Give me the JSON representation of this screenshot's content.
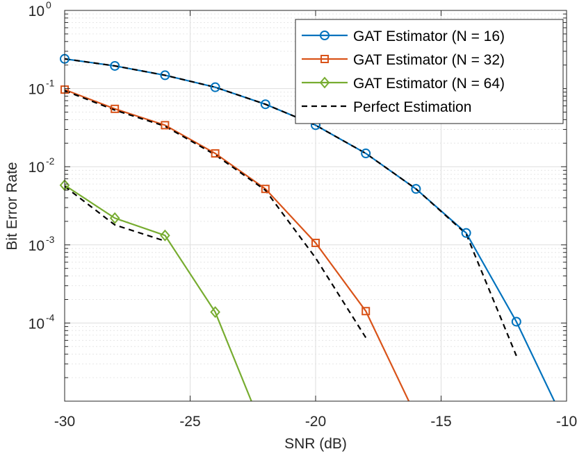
{
  "chart_data": {
    "type": "line",
    "title": "",
    "xlabel": "SNR (dB)",
    "ylabel": "Bit Error Rate",
    "yscale": "log",
    "xlim": [
      -30,
      -10
    ],
    "ylim_log10": [
      -5,
      0
    ],
    "x_ticks": [
      -30,
      -25,
      -20,
      -15,
      -10
    ],
    "y_ticks_log10": [
      -4,
      -3,
      -2,
      -1,
      0
    ],
    "grid": true,
    "legend_position": "top-right",
    "series": [
      {
        "name": "GAT Estimator (N = 16)",
        "color": "#0072BD",
        "marker": "circle",
        "style": "solid",
        "x": [
          -30,
          -28,
          -26,
          -24,
          -22,
          -20,
          -18,
          -16,
          -14,
          -12,
          -10.3
        ],
        "y": [
          0.24,
          0.195,
          0.148,
          0.104,
          0.063,
          0.034,
          0.0148,
          0.0052,
          0.00142,
          0.000104,
          7.5e-06
        ],
        "marker_count": 10
      },
      {
        "name": "GAT Estimator (N = 32)",
        "color": "#D95319",
        "marker": "square",
        "style": "solid",
        "x": [
          -30,
          -28,
          -26,
          -24,
          -22,
          -20,
          -18,
          -16.1
        ],
        "y": [
          0.097,
          0.055,
          0.034,
          0.0148,
          0.0052,
          0.00106,
          0.000142,
          7.5e-06
        ],
        "marker_count": 7
      },
      {
        "name": "GAT Estimator (N = 64)",
        "color": "#77AC30",
        "marker": "diamond",
        "style": "solid",
        "x": [
          -30,
          -28,
          -26,
          -24,
          -22.4
        ],
        "y": [
          0.0058,
          0.0022,
          0.00132,
          0.000138,
          7.5e-06
        ],
        "marker_count": 4
      },
      {
        "name": "Perfect Estimation",
        "color": "#000000",
        "marker": "none",
        "style": "dashed",
        "segments": [
          {
            "x": [
              -30,
              -28,
              -26,
              -24,
              -22,
              -20,
              -18,
              -16,
              -14,
              -12
            ],
            "y": [
              0.24,
              0.195,
              0.148,
              0.104,
              0.063,
              0.034,
              0.0148,
              0.0052,
              0.00138,
              3.8e-05
            ]
          },
          {
            "x": [
              -30,
              -28,
              -26,
              -24,
              -22,
              -20,
              -18
            ],
            "y": [
              0.094,
              0.053,
              0.033,
              0.0142,
              0.005,
              0.00068,
              6.5e-05
            ]
          },
          {
            "x": [
              -30,
              -28,
              -26
            ],
            "y": [
              0.0056,
              0.0018,
              0.00112
            ]
          }
        ]
      }
    ]
  }
}
